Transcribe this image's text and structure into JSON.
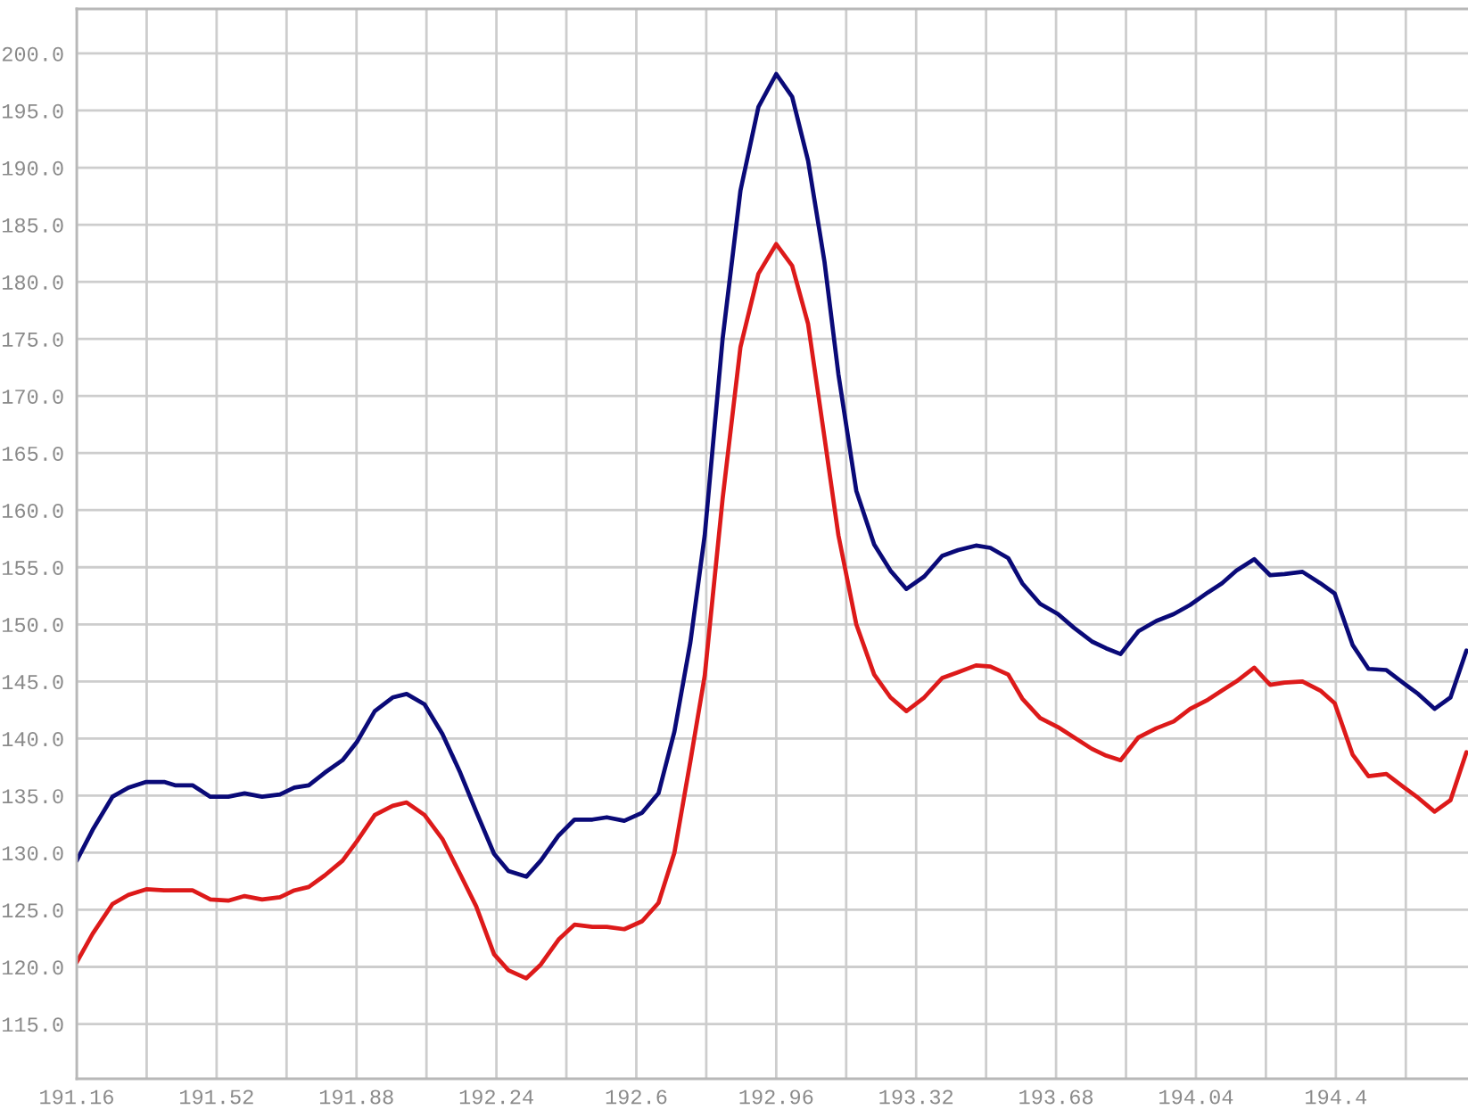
{
  "chart_data": {
    "type": "line",
    "x": [
      191.16,
      191.201,
      191.252,
      191.293,
      191.339,
      191.385,
      191.413,
      191.458,
      191.504,
      191.55,
      191.592,
      191.637,
      191.683,
      191.72,
      191.757,
      191.798,
      191.844,
      191.881,
      191.927,
      191.973,
      192.009,
      192.055,
      192.101,
      192.147,
      192.188,
      192.234,
      192.271,
      192.317,
      192.354,
      192.4,
      192.441,
      192.487,
      192.524,
      192.569,
      192.615,
      192.657,
      192.698,
      192.739,
      192.776,
      192.822,
      192.868,
      192.914,
      192.96,
      193.001,
      193.042,
      193.084,
      193.12,
      193.166,
      193.212,
      193.254,
      193.295,
      193.341,
      193.387,
      193.428,
      193.474,
      193.511,
      193.557,
      193.593,
      193.639,
      193.685,
      193.726,
      193.772,
      193.809,
      193.846,
      193.892,
      193.938,
      193.983,
      194.025,
      194.071,
      194.107,
      194.144,
      194.19,
      194.231,
      194.268,
      194.314,
      194.36,
      194.397,
      194.443,
      194.484,
      194.53,
      194.576,
      194.612,
      194.654,
      194.695,
      194.736
    ],
    "series": [
      {
        "color": "#0a0a78",
        "values": [
          129.3,
          132.0,
          134.9,
          135.7,
          136.2,
          136.2,
          135.9,
          135.9,
          134.9,
          134.9,
          135.2,
          134.9,
          135.1,
          135.7,
          135.9,
          137.0,
          138.1,
          139.7,
          142.4,
          143.6,
          143.9,
          143.0,
          140.4,
          137.0,
          133.6,
          129.9,
          128.4,
          127.9,
          129.3,
          131.5,
          132.9,
          132.9,
          133.1,
          132.8,
          133.5,
          135.2,
          140.6,
          148.4,
          157.8,
          175.0,
          188.0,
          195.3,
          198.2,
          196.2,
          190.6,
          181.8,
          171.9,
          161.7,
          157.0,
          154.7,
          153.1,
          154.2,
          156.0,
          156.5,
          156.9,
          156.7,
          155.8,
          153.6,
          151.8,
          150.9,
          149.7,
          148.5,
          147.9,
          147.4,
          149.4,
          150.3,
          150.9,
          151.7,
          152.8,
          153.6,
          154.7,
          155.7,
          154.3,
          154.4,
          154.6,
          153.6,
          152.7,
          148.2,
          146.1,
          146.0,
          144.8,
          143.9,
          142.6,
          143.6,
          147.7
        ]
      },
      {
        "color": "#dd1a1a",
        "values": [
          120.4,
          122.9,
          125.5,
          126.3,
          126.8,
          126.7,
          126.7,
          126.7,
          125.9,
          125.8,
          126.2,
          125.9,
          126.1,
          126.7,
          127.0,
          128.0,
          129.3,
          131.0,
          133.3,
          134.1,
          134.4,
          133.3,
          131.2,
          128.1,
          125.3,
          121.1,
          119.7,
          119.0,
          120.2,
          122.4,
          123.7,
          123.5,
          123.5,
          123.3,
          124.0,
          125.6,
          130.0,
          138.0,
          145.5,
          161.0,
          174.3,
          180.7,
          183.3,
          181.4,
          176.3,
          166.4,
          157.8,
          150.0,
          145.6,
          143.6,
          142.4,
          143.6,
          145.3,
          145.8,
          146.4,
          146.3,
          145.6,
          143.5,
          141.8,
          141.0,
          140.1,
          139.1,
          138.5,
          138.1,
          140.1,
          140.9,
          141.5,
          142.6,
          143.4,
          144.2,
          145.0,
          146.2,
          144.7,
          144.9,
          145.0,
          144.2,
          143.1,
          138.6,
          136.7,
          136.9,
          135.7,
          134.8,
          133.6,
          134.6,
          138.8
        ]
      }
    ],
    "xlim": [
      191.16,
      194.74
    ],
    "ylim": [
      110.2,
      203.9
    ],
    "xticks": [
      191.16,
      {
        "value": 191.34,
        "label": null
      },
      191.52,
      {
        "value": 191.7,
        "label": null
      },
      191.88,
      {
        "value": 192.06,
        "label": null
      },
      192.24,
      {
        "value": 192.42,
        "label": null
      },
      192.6,
      {
        "value": 192.78,
        "label": null
      },
      192.96,
      {
        "value": 193.14,
        "label": null
      },
      193.32,
      {
        "value": 193.5,
        "label": null
      },
      193.68,
      {
        "value": 193.86,
        "label": null
      },
      194.04,
      {
        "value": 194.22,
        "label": null
      },
      194.4,
      {
        "value": 194.58,
        "label": null
      }
    ],
    "yticks": [
      {
        "value": 115,
        "label": "115.0"
      },
      {
        "value": 120,
        "label": "120.0"
      },
      {
        "value": 125,
        "label": "125.0"
      },
      {
        "value": 130,
        "label": "130.0"
      },
      {
        "value": 135,
        "label": "135.0"
      },
      {
        "value": 140,
        "label": "140.0"
      },
      {
        "value": 145,
        "label": "145.0"
      },
      {
        "value": 150,
        "label": "150.0"
      },
      {
        "value": 155,
        "label": "155.0"
      },
      {
        "value": 160,
        "label": "160.0"
      },
      {
        "value": 165,
        "label": "165.0"
      },
      {
        "value": 170,
        "label": "170.0"
      },
      {
        "value": 175,
        "label": "175.0"
      },
      {
        "value": 180,
        "label": "180.0"
      },
      {
        "value": 185,
        "label": "185.0"
      },
      {
        "value": 190,
        "label": "190.0"
      },
      {
        "value": 195,
        "label": "195.0"
      },
      {
        "value": 200,
        "label": "200.0"
      }
    ],
    "grid": true,
    "line_style": "solid"
  }
}
